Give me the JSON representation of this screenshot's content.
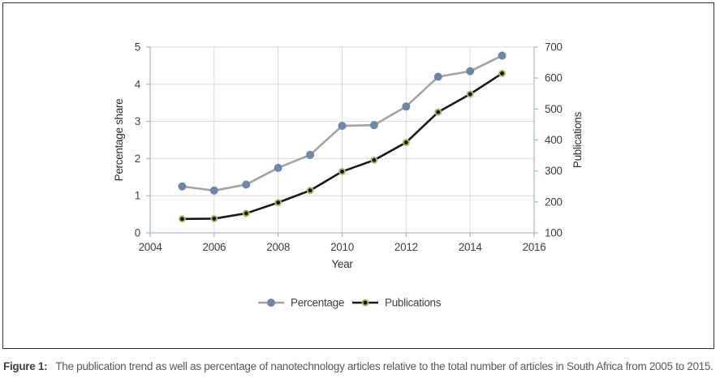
{
  "figure": {
    "caption_label": "Figure 1:",
    "caption_text": "The publication trend as well as percentage of nanotechnology articles relative to the total number of articles in South Africa from 2005 to 2015."
  },
  "chart_data": {
    "type": "line",
    "x": [
      2005,
      2006,
      2007,
      2008,
      2009,
      2010,
      2011,
      2012,
      2013,
      2014,
      2015
    ],
    "series": [
      {
        "name": "Percentage",
        "axis": "left",
        "values": [
          1.25,
          1.14,
          1.3,
          1.75,
          2.1,
          2.88,
          2.9,
          3.4,
          4.2,
          4.35,
          4.77
        ],
        "line_color": "#a3a3a3",
        "marker_fill": "#6d87a8",
        "marker_ring": "#6d87a8"
      },
      {
        "name": "Publications",
        "axis": "right",
        "values": [
          145,
          146,
          163,
          198,
          237,
          298,
          335,
          392,
          490,
          548,
          615
        ],
        "line_color": "#1a1a1a",
        "marker_fill": "#111111",
        "marker_ring": "#9bbb59"
      }
    ],
    "x_axis": {
      "label": "Year",
      "min": 2004,
      "max": 2016,
      "ticks": [
        2004,
        2006,
        2008,
        2010,
        2012,
        2014,
        2016
      ]
    },
    "left_axis": {
      "label": "Percentage share",
      "min": 0,
      "max": 5,
      "ticks": [
        0,
        1,
        2,
        3,
        4,
        5
      ]
    },
    "right_axis": {
      "label": "Publications",
      "min": 100,
      "max": 700,
      "ticks": [
        100,
        200,
        300,
        400,
        500,
        600,
        700
      ]
    },
    "legend": {
      "position": "bottom-center",
      "items": [
        "Percentage",
        "Publications"
      ]
    },
    "grid": true,
    "colors": {
      "grid": "#d9d9d9",
      "axis": "#a9bdca",
      "tick_text": "#3f3f3f",
      "axis_title_text": "#2f2f2f"
    }
  }
}
